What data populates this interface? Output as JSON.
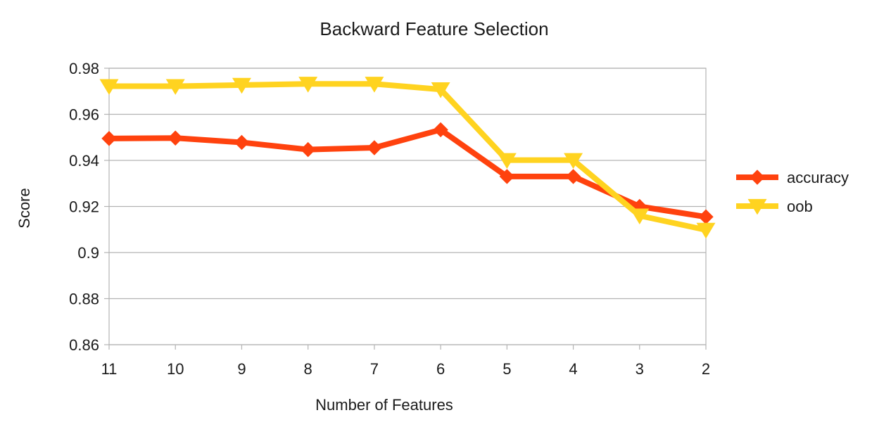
{
  "chart_data": {
    "type": "line",
    "title": "Backward Feature Selection",
    "xlabel": "Number of Features",
    "ylabel": "Score",
    "categories": [
      "11",
      "10",
      "9",
      "8",
      "7",
      "6",
      "5",
      "4",
      "3",
      "2"
    ],
    "ylim": [
      0.86,
      0.98
    ],
    "yticks": [
      0.98,
      0.96,
      0.94,
      0.92,
      0.9,
      0.88,
      0.86
    ],
    "ytick_labels": [
      "0.98",
      "0.96",
      "0.94",
      "0.92",
      "0.9",
      "0.88",
      "0.86"
    ],
    "grid": true,
    "legend_position": "right",
    "series": [
      {
        "name": "accuracy",
        "color": "#ff420e",
        "marker": "diamond",
        "values": [
          0.9495,
          0.9497,
          0.9478,
          0.9447,
          0.9455,
          0.9533,
          0.933,
          0.933,
          0.92,
          0.9155
        ]
      },
      {
        "name": "oob",
        "color": "#ffd320",
        "marker": "triangle-down",
        "values": [
          0.9722,
          0.9722,
          0.9727,
          0.9732,
          0.9732,
          0.9708,
          0.9401,
          0.9401,
          0.916,
          0.9098
        ]
      }
    ]
  }
}
